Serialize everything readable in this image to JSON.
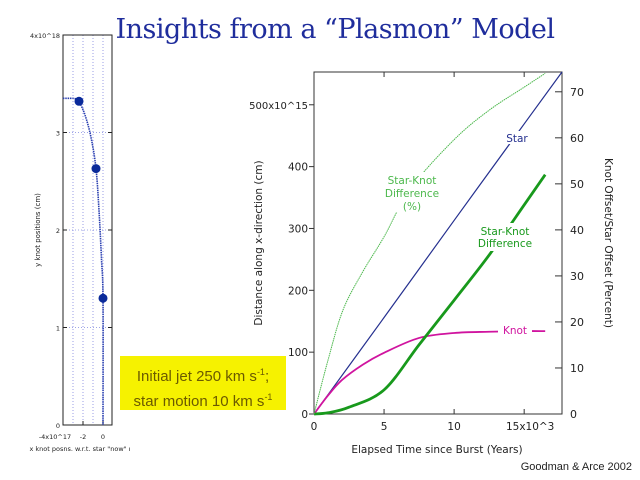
{
  "title": "Insights from a “Plasmon” Model",
  "note": {
    "line1": "Initial jet 250 km s",
    "line1_sup": "-1",
    "line1_end": ";",
    "line2": "star motion 10 km s",
    "line2_sup": "-1"
  },
  "credit": "Goodman & Arce 2002",
  "colors": {
    "title": "#1f2d9c",
    "note_bg": "#f6f200",
    "star": "#25308f",
    "knot": "#d0149f",
    "difference": "#18991c",
    "difference_percent": "#4cb84c",
    "knot_path": "#2a3fb0"
  },
  "chart_data": [
    {
      "type": "line",
      "xlabel": "x knot posns. w.r.t. star \"now\" ı",
      "ylabel": "y knot positions (cm)",
      "xlim": [
        -4e+17,
        9e+16
      ],
      "ylim": [
        0,
        4e+18
      ],
      "x_tick_labels": [
        {
          "value": -4,
          "label": "-4x10^17"
        },
        {
          "value": -2,
          "label": "-2"
        },
        {
          "value": 0,
          "label": "0"
        }
      ],
      "y_tick_labels": [
        {
          "value": 0,
          "label": "0"
        },
        {
          "value": 1,
          "label": "1"
        },
        {
          "value": 2,
          "label": "2"
        },
        {
          "value": 3,
          "label": "3"
        },
        {
          "value": 4,
          "label": "4x10^18"
        }
      ],
      "grid": true,
      "unit_note": "x in 1e17 cm, y in 1e18 cm",
      "series": [
        {
          "x": [
            -4,
            -3,
            -2.6,
            -2.4,
            -1.8,
            -1.2,
            -0.7,
            -0.4,
            -0.15,
            0,
            0
          ],
          "y": [
            3.35,
            3.35,
            3.34,
            3.32,
            3.18,
            2.95,
            2.63,
            2.2,
            1.7,
            1.3,
            0
          ]
        }
      ],
      "markers": {
        "x": [
          -2.4,
          -0.7,
          0
        ],
        "y": [
          3.32,
          2.63,
          1.3
        ]
      }
    },
    {
      "type": "line",
      "xlabel": "Elapsed Time since Burst (Years)",
      "ylabel": "Distance along x-direction (cm)",
      "y2label": "Knot Offset/Star Offset (Percent)",
      "xlim": [
        0,
        17.7
      ],
      "ylim": [
        0,
        553
      ],
      "y2lim": [
        0,
        74.3
      ],
      "x_tick_labels": [
        {
          "value": 0,
          "label": "0"
        },
        {
          "value": 5,
          "label": "5"
        },
        {
          "value": 10,
          "label": "10"
        },
        {
          "value": 15,
          "label": "15x10^3"
        }
      ],
      "y_tick_labels": [
        {
          "value": 0,
          "label": "0"
        },
        {
          "value": 100,
          "label": "100"
        },
        {
          "value": 200,
          "label": "200"
        },
        {
          "value": 300,
          "label": "300"
        },
        {
          "value": 400,
          "label": "400"
        },
        {
          "value": 500,
          "label": "500x10^15"
        }
      ],
      "y2_tick_labels": [
        {
          "value": 0,
          "label": "0"
        },
        {
          "value": 10,
          "label": "10"
        },
        {
          "value": 20,
          "label": "20"
        },
        {
          "value": 30,
          "label": "30"
        },
        {
          "value": 40,
          "label": "40"
        },
        {
          "value": 50,
          "label": "50"
        },
        {
          "value": 60,
          "label": "60"
        },
        {
          "value": 70,
          "label": "70"
        }
      ],
      "grid": false,
      "series": [
        {
          "name": "Star",
          "axis": "left",
          "x": [
            0,
            5,
            10,
            15,
            17.7
          ],
          "y": [
            0,
            156,
            313,
            469,
            553
          ]
        },
        {
          "name": "Knot",
          "axis": "left",
          "x": [
            0,
            1,
            2,
            3.5,
            5,
            7.5,
            10,
            12.5,
            15,
            16.5
          ],
          "y": [
            0,
            30,
            55,
            80,
            99,
            123,
            131,
            133,
            134,
            134
          ]
        },
        {
          "name": "Star-Knot Difference",
          "axis": "left",
          "x": [
            0,
            1,
            2.5,
            5,
            7.5,
            10,
            12.5,
            15,
            16.5
          ],
          "y": [
            0,
            2,
            11,
            39,
            112,
            184,
            257,
            338,
            387
          ]
        },
        {
          "name": "Star-Knot Difference (%)",
          "axis": "right",
          "x": [
            0,
            1,
            2.07,
            3.5,
            5,
            6.9,
            10,
            12.5,
            15,
            16.5
          ],
          "y": [
            0,
            11.7,
            22.6,
            31,
            38.5,
            49,
            59.6,
            66,
            71,
            74
          ]
        }
      ],
      "series_labels": {
        "star": "Star",
        "knot": "Knot",
        "difference": [
          "Star-Knot",
          "Difference"
        ],
        "difference_percent": [
          "Star-Knot",
          "Difference",
          "(%)"
        ]
      }
    }
  ]
}
